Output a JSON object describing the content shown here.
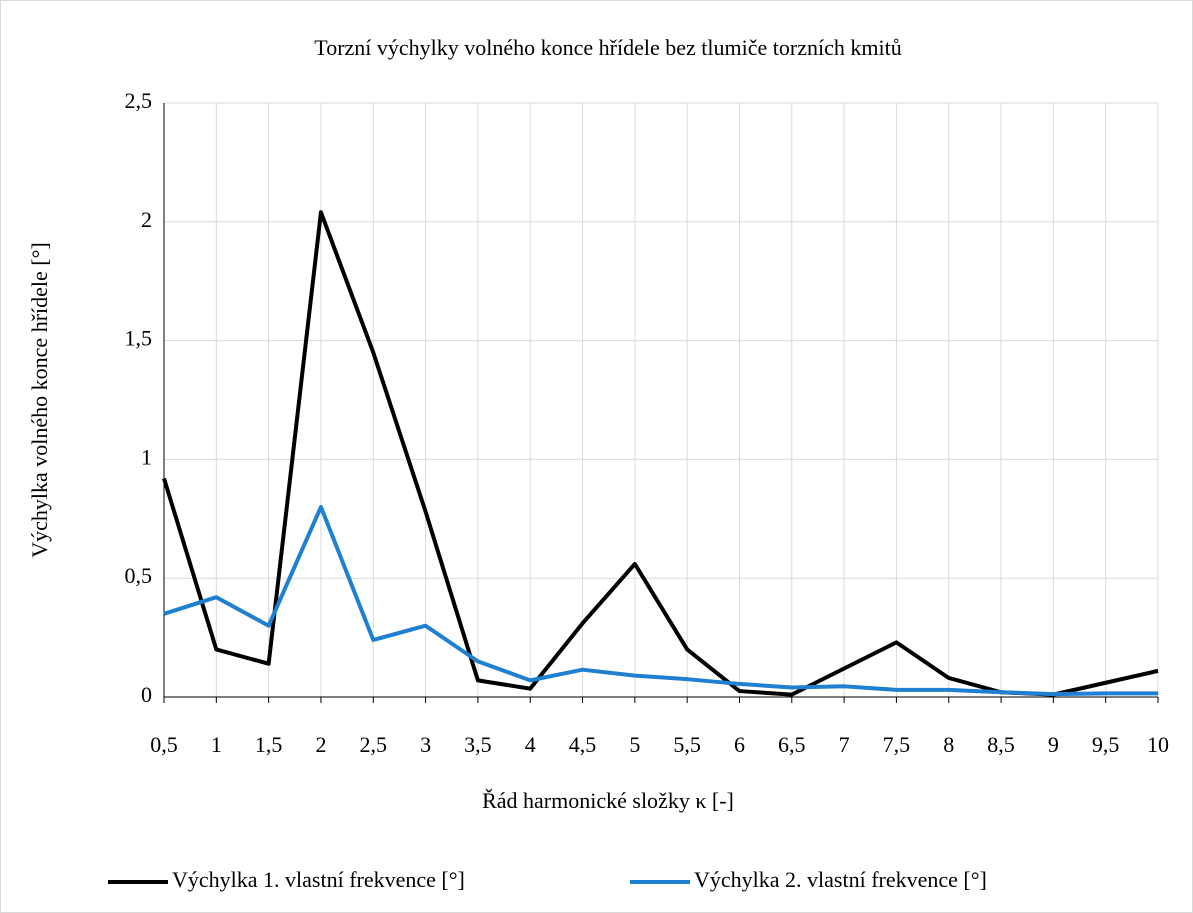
{
  "chart_data": {
    "type": "line",
    "title": "Torzní výchylky volného konce hřídele bez tlumiče torzních kmitů",
    "x_label": "Řád harmonické složky κ [-]",
    "y_label": "Výchylka volného konce hřídele [°]",
    "categories": [
      "0,5",
      "1",
      "1,5",
      "2",
      "2,5",
      "3",
      "3,5",
      "4",
      "4,5",
      "5",
      "5,5",
      "6",
      "6,5",
      "7",
      "7,5",
      "8",
      "8,5",
      "9",
      "9,5",
      "10"
    ],
    "series": [
      {
        "name": "Výchylka 1. vlastní frekvence [°]",
        "color": "#000000",
        "values": [
          0.92,
          0.2,
          0.14,
          2.04,
          1.45,
          0.78,
          0.07,
          0.035,
          0.31,
          0.56,
          0.2,
          0.025,
          0.01,
          0.12,
          0.23,
          0.08,
          0.02,
          0.01,
          0.06,
          0.11
        ]
      },
      {
        "name": "Výchylka 2. vlastní frekvence [°]",
        "color": "#1f7fd0",
        "values": [
          0.35,
          0.42,
          0.3,
          0.8,
          0.24,
          0.3,
          0.15,
          0.07,
          0.115,
          0.09,
          0.075,
          0.055,
          0.04,
          0.045,
          0.03,
          0.03,
          0.02,
          0.012,
          0.015,
          0.015
        ]
      }
    ],
    "ylim": [
      0,
      2.5
    ],
    "yticks": [
      0,
      {
        "value": 0.5,
        "label": "0,5"
      },
      1,
      {
        "value": 1.5,
        "label": "1,5"
      },
      2,
      {
        "value": 2.5,
        "label": "2,5"
      }
    ],
    "grid": true,
    "legend": "bottom"
  }
}
